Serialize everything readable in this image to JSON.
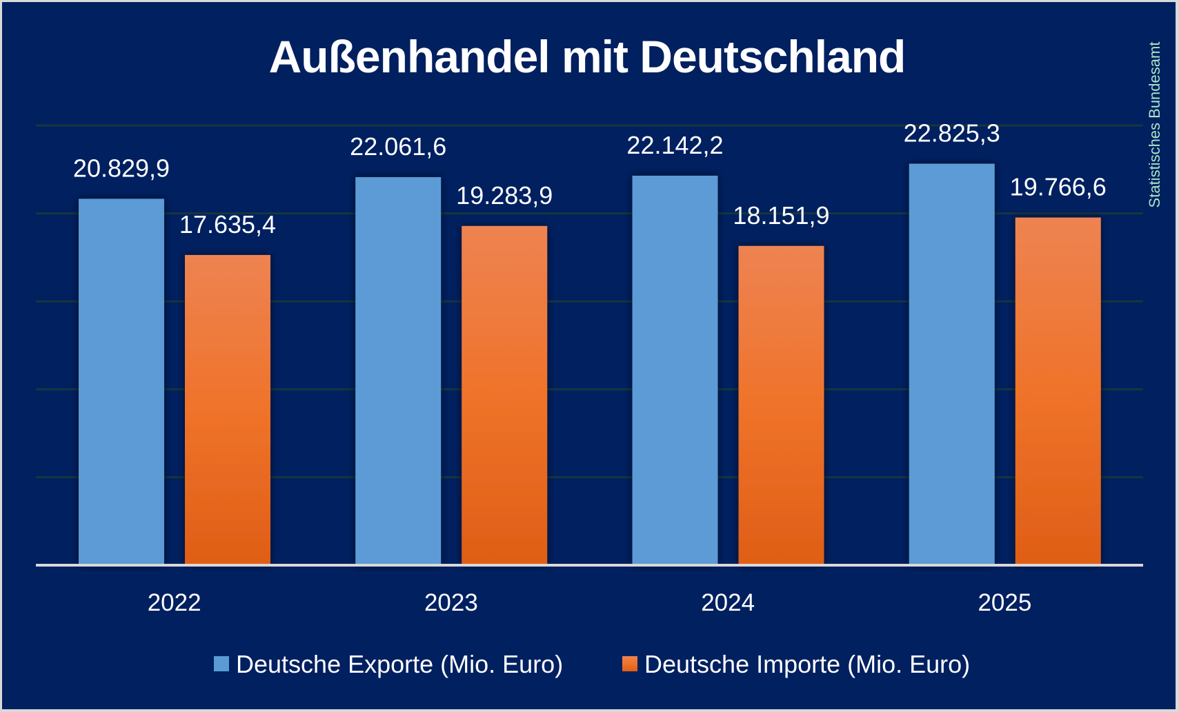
{
  "chart_data": {
    "type": "bar",
    "title": "Außenhandel mit Deutschland",
    "source": "Statistisches Bundesamt",
    "categories": [
      "2022",
      "2023",
      "2024",
      "2025"
    ],
    "series": [
      {
        "name": "Deutsche Exporte (Mio. Euro)",
        "color": "#5b9bd5",
        "values": [
          20829.9,
          22061.6,
          22142.2,
          22825.3
        ],
        "labels": [
          "20.829,9",
          "22.061,6",
          "22.142,2",
          "22.825,3"
        ]
      },
      {
        "name": "Deutsche Importe (Mio. Euro)",
        "color": "#ed7d31",
        "color_gradient": [
          "#ee8352",
          "#ef732a",
          "#df5e16"
        ],
        "values": [
          17635.4,
          19283.9,
          18151.9,
          19766.6
        ],
        "labels": [
          "17.635,4",
          "19.283,9",
          "18.151,9",
          "19.766,6"
        ]
      }
    ],
    "xlabel": "",
    "ylabel": "",
    "ylim": [
      0,
      25000
    ],
    "y_gridlines": [
      5000,
      10000,
      15000,
      20000,
      25000
    ],
    "y_tick_labels_visible": false,
    "grid": true,
    "legend_position": "bottom",
    "colors": {
      "background": "#002060",
      "text": "#ffffff",
      "source_text": "#a9e4c4",
      "gridline": "#16363f",
      "axis": "#d9d9d9"
    }
  }
}
